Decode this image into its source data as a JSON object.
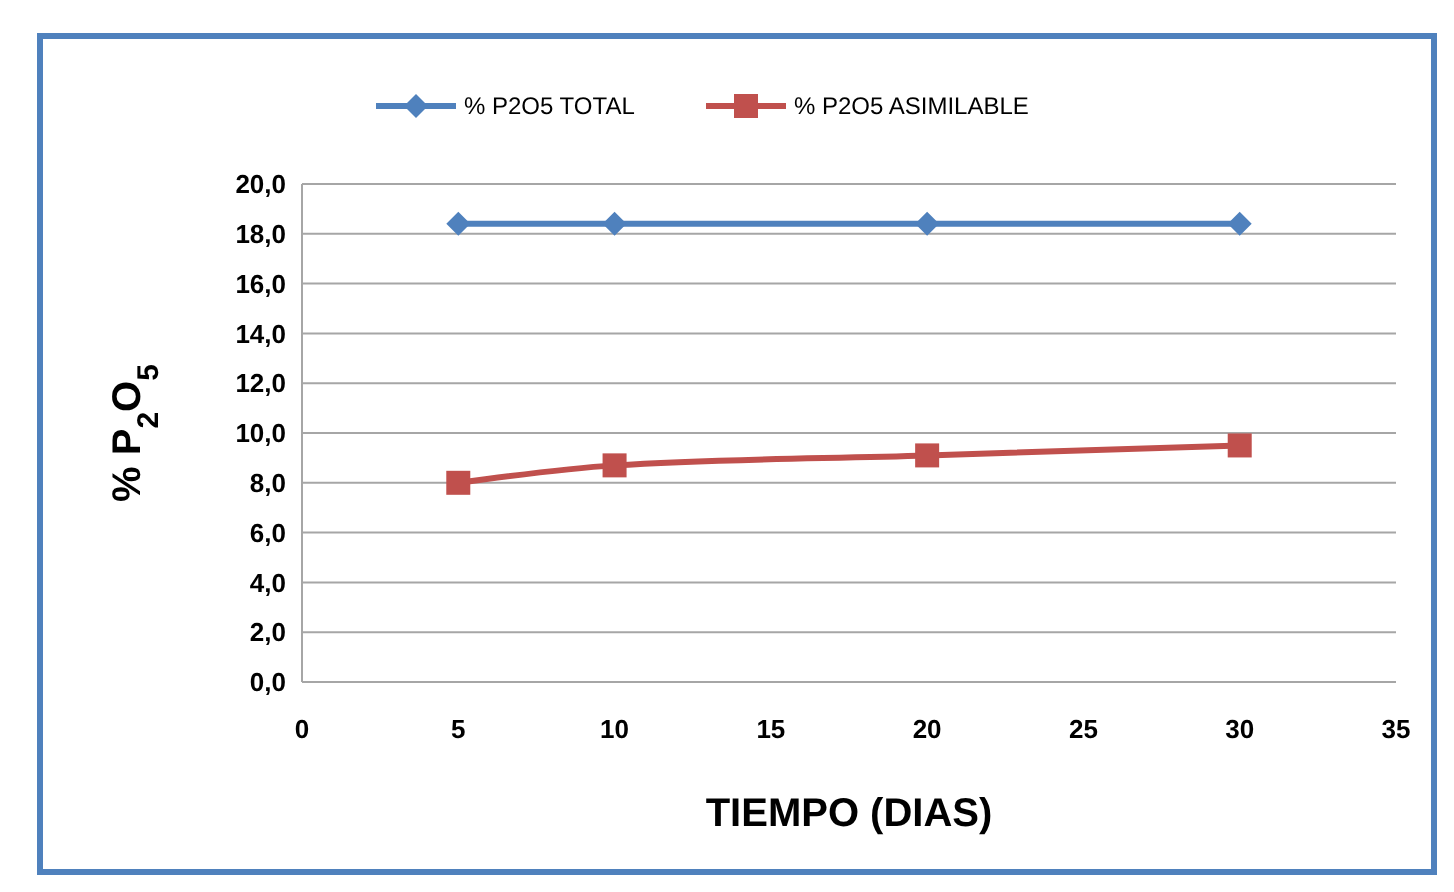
{
  "chart_data": {
    "type": "line",
    "xlabel": "TIEMPO (DIAS)",
    "ylabel": "% P$_{2}$O$_{5}$",
    "x": [
      5,
      10,
      20,
      30
    ],
    "series": [
      {
        "name": "% P2O5 TOTAL",
        "color": "#4f81bd",
        "marker": "diamond",
        "values": [
          18.4,
          18.4,
          18.4,
          18.4
        ]
      },
      {
        "name": "% P2O5 ASIMILABLE",
        "color": "#c0504d",
        "marker": "square",
        "values": [
          8.0,
          8.7,
          9.1,
          9.5
        ]
      }
    ],
    "xlim": [
      0,
      35
    ],
    "xticks": [
      0,
      5,
      10,
      15,
      20,
      25,
      30,
      35
    ],
    "ylim": [
      0,
      20
    ],
    "yticks": [
      {
        "value": 0,
        "label": "0,0"
      },
      {
        "value": 2,
        "label": "2,0"
      },
      {
        "value": 4,
        "label": "4,0"
      },
      {
        "value": 6,
        "label": "6,0"
      },
      {
        "value": 8,
        "label": "8,0"
      },
      {
        "value": 10,
        "label": "10,0"
      },
      {
        "value": 12,
        "label": "12,0"
      },
      {
        "value": 14,
        "label": "14,0"
      },
      {
        "value": 16,
        "label": "16,0"
      },
      {
        "value": 18,
        "label": "18,0"
      },
      {
        "value": 20,
        "label": "20,0"
      }
    ],
    "grid": "y",
    "legend": "top"
  }
}
